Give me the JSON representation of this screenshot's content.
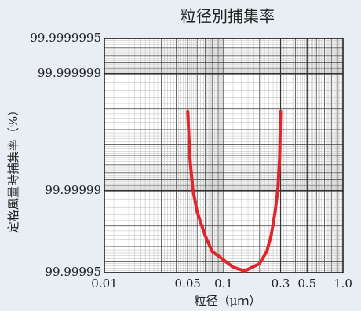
{
  "chart_data": {
    "type": "line",
    "title": "粒径別捕集率",
    "x_label": "粒径（μｍ）",
    "y_label": "定格風量時捕集率（%）",
    "xscale": "log",
    "yscale": "log-penetration",
    "xlim": [
      0.01,
      1
    ],
    "xticks": [
      0.01,
      0.05,
      0.1,
      0.3,
      0.5,
      {
        "value": 1,
        "label": "1.0"
      }
    ],
    "ylim": [
      99.99995,
      99.9999995
    ],
    "yticks": [
      99.99995,
      99.99999,
      99.999999,
      99.9999995
    ],
    "grid": true,
    "x": [
      0.05,
      0.052,
      0.055,
      0.06,
      0.07,
      0.08,
      0.09,
      0.12,
      0.15,
      0.2,
      0.23,
      0.25,
      0.27,
      0.285,
      0.295,
      0.3
    ],
    "series": [
      {
        "color": "#e0262a",
        "values": [
          99.9999979,
          99.9999949,
          99.9999904,
          99.9999848,
          99.9999758,
          99.999967,
          99.999964,
          99.999955,
          99.9999515,
          99.999958,
          99.999967,
          99.9999758,
          99.9999848,
          99.9999904,
          99.9999949,
          99.9999979
        ]
      }
    ]
  }
}
